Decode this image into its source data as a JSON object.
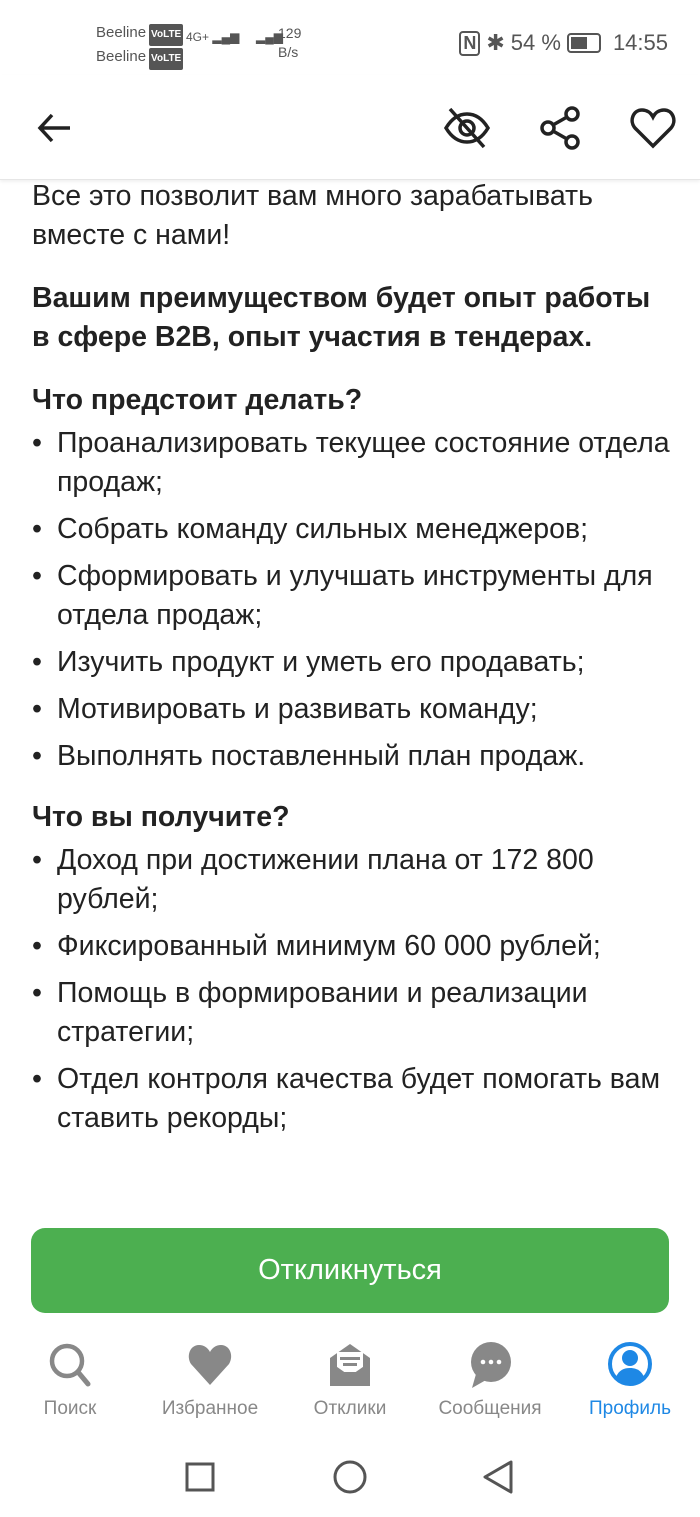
{
  "status_bar": {
    "carrier1": "Beeline",
    "carrier2": "Beeline",
    "volte": "VoLTE",
    "network": "4G+",
    "speed_value": "129",
    "speed_unit": "B/s",
    "battery": "54 %",
    "time": "14:55"
  },
  "header": {
    "back": "arrow-left-icon",
    "actions": [
      "eye-off-icon",
      "share-icon",
      "heart-outline-icon"
    ]
  },
  "content": {
    "intro": "Все это позволит вам много зарабатывать вместе с нами!",
    "advantage": "Вашим преимуществом будет опыт работы в сфере B2B, опыт участия в тендерах.",
    "sections": [
      {
        "heading": "Что предстоит делать?",
        "items": [
          "Проанализировать текущее состояние отдела продаж;",
          "Собрать команду сильных менеджеров;",
          "Сформировать и улучшать инструменты для отдела продаж;",
          "Изучить продукт и уметь его продавать;",
          "Мотивировать и развивать команду;",
          "Выполнять поставленный план продаж."
        ]
      },
      {
        "heading": "Что вы получите?",
        "items": [
          "Доход при достижении плана от 172 800 рублей;",
          "Фиксированный минимум 60 000 рублей;",
          "Помощь в формировании и реализации стратегии;",
          "Отдел контроля качества будет помогать вам ставить рекорды;"
        ]
      }
    ]
  },
  "apply_button": "Откликнуться",
  "colors": {
    "accent_green": "#4caf50",
    "active_blue": "#1e88e5",
    "inactive": "#888888"
  },
  "nav": [
    {
      "label": "Поиск",
      "icon": "search-icon"
    },
    {
      "label": "Избранное",
      "icon": "heart-icon"
    },
    {
      "label": "Отклики",
      "icon": "envelope-open-icon"
    },
    {
      "label": "Сообщения",
      "icon": "chat-bubble-icon"
    },
    {
      "label": "Профиль",
      "icon": "profile-icon",
      "active": true
    }
  ]
}
